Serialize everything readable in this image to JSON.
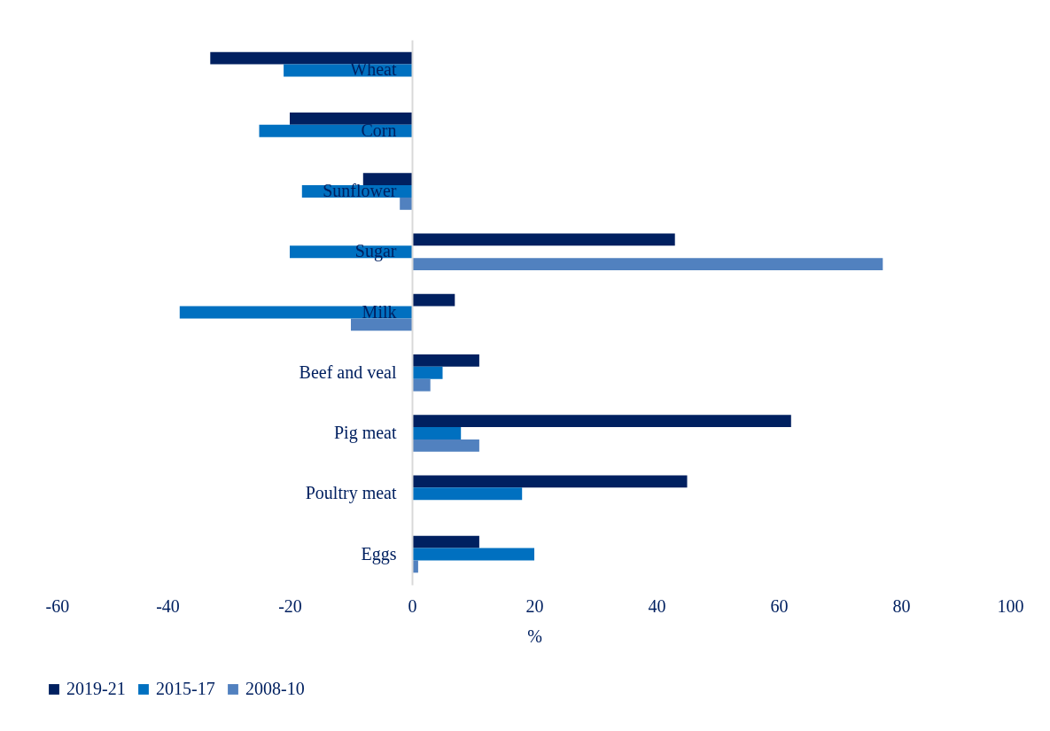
{
  "chart_data": {
    "type": "bar",
    "orientation": "horizontal",
    "xlabel": "%",
    "categories": [
      "Wheat",
      "Corn",
      "Sunflower",
      "Sugar",
      "Milk",
      "Beef and veal",
      "Pig meat",
      "Poultry meat",
      "Eggs"
    ],
    "series": [
      {
        "name": "2019-21",
        "color": "#002060",
        "values": [
          -33,
          -20,
          -8,
          43,
          7,
          11,
          62,
          45,
          11
        ]
      },
      {
        "name": "2015-17",
        "color": "#0070c0",
        "values": [
          -21,
          -25,
          -18,
          -20,
          -38,
          5,
          8,
          18,
          20
        ]
      },
      {
        "name": "2008-10",
        "color": "#5181bf",
        "values": [
          null,
          null,
          -2,
          77,
          -10,
          3,
          11,
          null,
          1
        ]
      }
    ],
    "xlim": [
      -60,
      100
    ],
    "xticks": [
      -60,
      -40,
      -20,
      0,
      20,
      40,
      60,
      80,
      100
    ],
    "grid": false,
    "legend": "bottom"
  }
}
